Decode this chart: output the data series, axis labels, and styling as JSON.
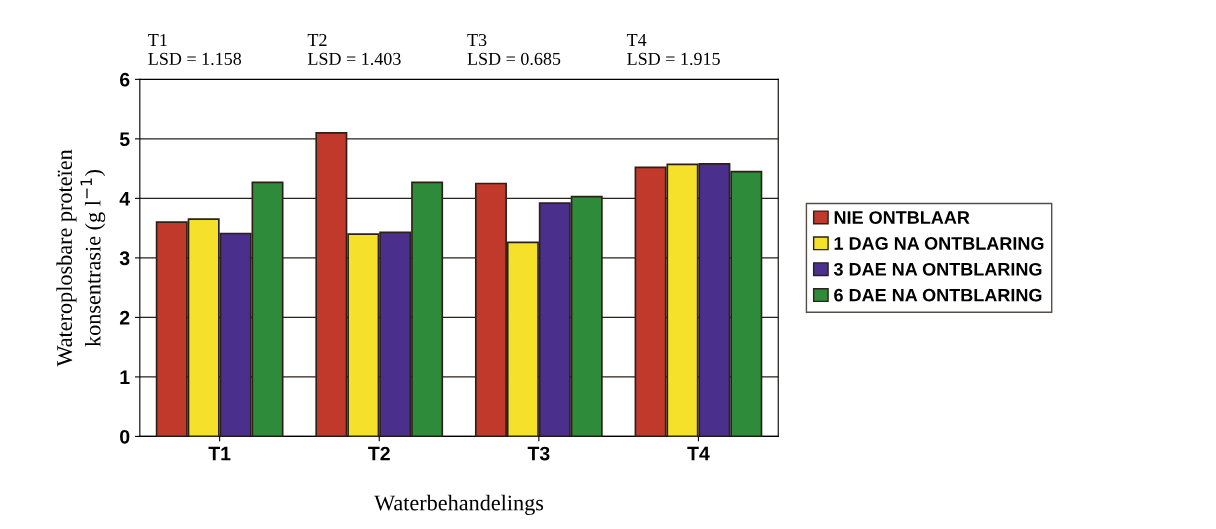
{
  "chart_data": {
    "type": "bar",
    "xlabel": "Waterbehandelings",
    "ylabel": "Wateroplosbare proteïen\nkonsentrasie (g l$^{−1}$)",
    "categories": [
      "T1",
      "T2",
      "T3",
      "T4"
    ],
    "series": [
      {
        "name": "NIE ONTBLAAR",
        "color": "#c0392b",
        "values": [
          3.6,
          5.1,
          4.25,
          4.52
        ]
      },
      {
        "name": "1 DAG NA ONTBLARING",
        "color": "#f5e12a",
        "values": [
          3.65,
          3.4,
          3.26,
          4.57
        ]
      },
      {
        "name": "3 DAE NA ONTBLARING",
        "color": "#4a2f8c",
        "values": [
          3.41,
          3.43,
          3.92,
          4.58
        ]
      },
      {
        "name": "6 DAE NA ONTBLARING",
        "color": "#2e8b3a",
        "values": [
          4.27,
          4.27,
          4.03,
          4.45
        ]
      }
    ],
    "ylim": [
      0,
      6
    ],
    "yticks": [
      0,
      1,
      2,
      3,
      4,
      5,
      6
    ],
    "grid": "y",
    "legend": "right",
    "annotations": [
      "T1\nLSD = 1.158",
      "T2\nLSD = 1.403",
      "T3\nLSD = 0.685",
      "T4\nLSD = 1.915"
    ]
  }
}
